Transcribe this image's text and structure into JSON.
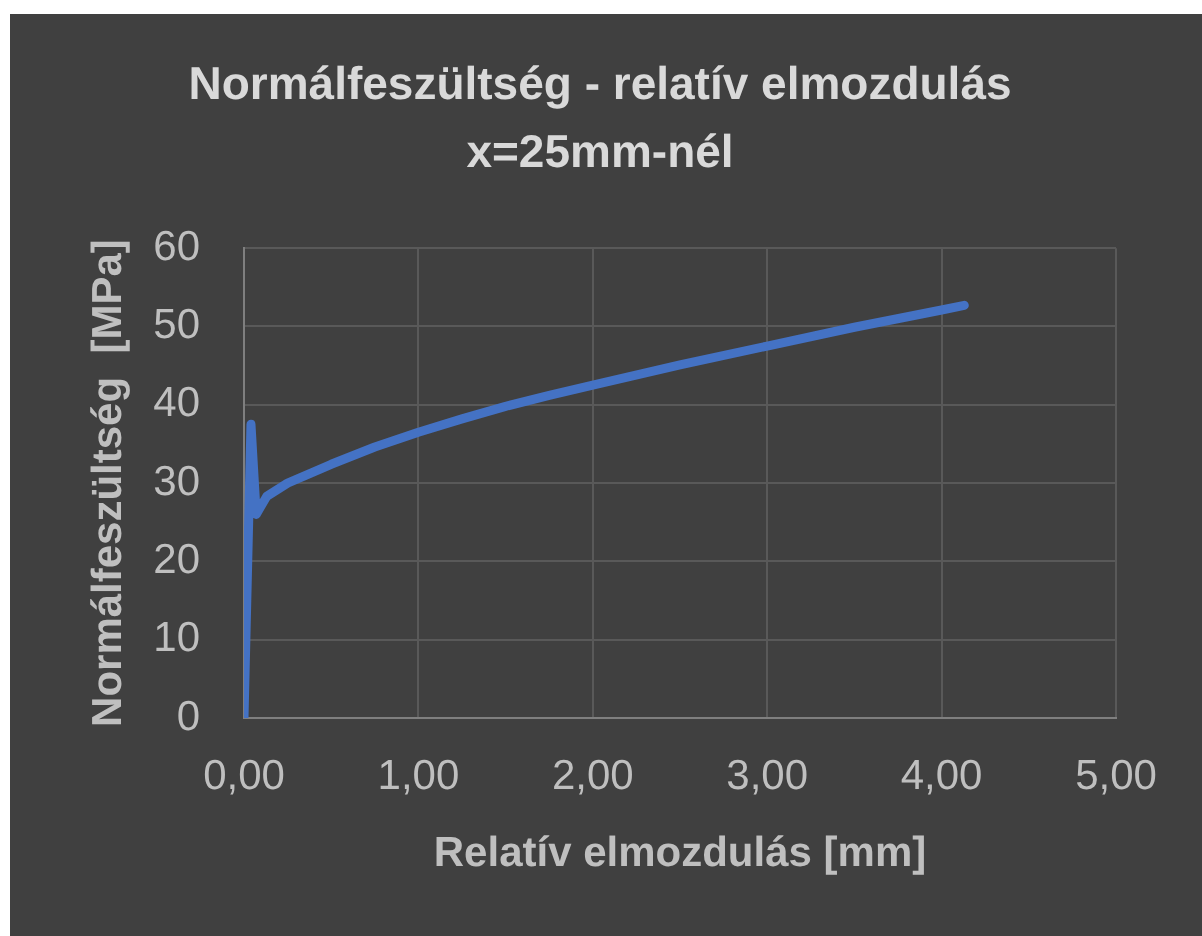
{
  "chart_data": {
    "type": "line",
    "title": "Normálfeszültség - relatív elmozdulás x=25mm-nél",
    "xlabel": "Relatív elmozdulás [mm]",
    "ylabel": "Normálfeszültség  [MPa]",
    "x": [
      0,
      0.04,
      0.07,
      0.13,
      0.25,
      0.5,
      0.75,
      1,
      1.25,
      1.5,
      1.75,
      2,
      2.5,
      3,
      3.5,
      4,
      4.13
    ],
    "values": [
      0,
      37.5,
      26,
      28.3,
      30,
      32.4,
      34.6,
      36.5,
      38.2,
      39.8,
      41.2,
      42.5,
      45.1,
      47.5,
      49.9,
      52.1,
      52.7
    ],
    "color": "#4472c4",
    "xlim": [
      0,
      5
    ],
    "xticks": [
      {
        "value": 0,
        "label": "0,00"
      },
      {
        "value": 1,
        "label": "1,00"
      },
      {
        "value": 2,
        "label": "2,00"
      },
      {
        "value": 3,
        "label": "3,00"
      },
      {
        "value": 4,
        "label": "4,00"
      },
      {
        "value": 5,
        "label": "5,00"
      }
    ],
    "ylim": [
      0,
      60
    ],
    "yticks": [
      0,
      10,
      20,
      30,
      40,
      50,
      60
    ],
    "grid": true
  }
}
